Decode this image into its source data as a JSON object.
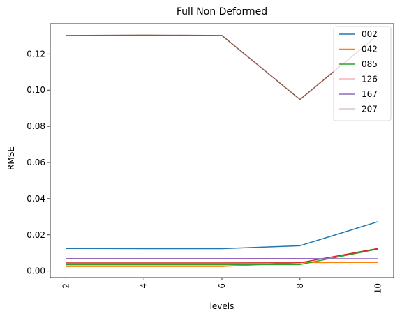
{
  "chart_data": {
    "type": "line",
    "title": "Full Non Deformed",
    "xlabel": "levels",
    "ylabel": "RMSE",
    "x": [
      2,
      4,
      6,
      8,
      10
    ],
    "xticks": [
      "2",
      "4",
      "6",
      "8",
      "10"
    ],
    "yticks": [
      "0.00",
      "0.02",
      "0.04",
      "0.06",
      "0.08",
      "0.10",
      "0.12"
    ],
    "ytick_values": [
      0.0,
      0.02,
      0.04,
      0.06,
      0.08,
      0.1,
      0.12
    ],
    "xlim": [
      1.6,
      10.4
    ],
    "ylim": [
      -0.0036,
      0.1367
    ],
    "grid": false,
    "legend": "top-right",
    "series": [
      {
        "name": "002",
        "color": "#1f77b4",
        "values": [
          0.0125,
          0.0124,
          0.0124,
          0.014,
          0.0273
        ]
      },
      {
        "name": "042",
        "color": "#ff7f0e",
        "values": [
          0.0025,
          0.0025,
          0.0025,
          0.0047,
          0.0048
        ]
      },
      {
        "name": "085",
        "color": "#2ca02c",
        "values": [
          0.0035,
          0.0035,
          0.0035,
          0.0036,
          0.0122
        ]
      },
      {
        "name": "126",
        "color": "#d62728",
        "values": [
          0.0045,
          0.0045,
          0.0045,
          0.0046,
          0.0125
        ]
      },
      {
        "name": "167",
        "color": "#9467bd",
        "values": [
          0.0069,
          0.0069,
          0.0069,
          0.0069,
          0.0068
        ]
      },
      {
        "name": "207",
        "color": "#8c564b",
        "values": [
          0.1302,
          0.1304,
          0.1302,
          0.0948,
          0.1305
        ]
      }
    ]
  }
}
